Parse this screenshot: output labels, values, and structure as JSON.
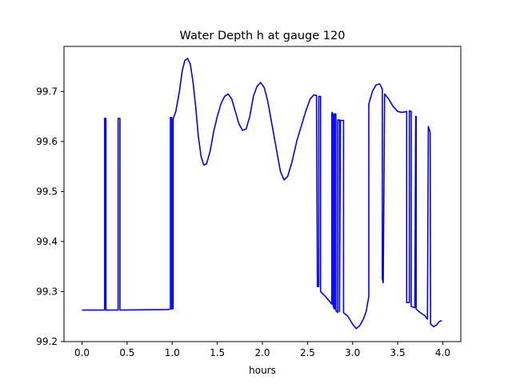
{
  "chart_data": {
    "type": "line",
    "title": "Water Depth h at gauge 120",
    "xlabel": "hours",
    "ylabel": "",
    "xlim": [
      -0.2,
      4.2
    ],
    "ylim": [
      99.2,
      99.79
    ],
    "x_ticks": [
      0.0,
      0.5,
      1.0,
      1.5,
      2.0,
      2.5,
      3.0,
      3.5,
      4.0
    ],
    "x_tick_labels": [
      "0.0",
      "0.5",
      "1.0",
      "1.5",
      "2.0",
      "2.5",
      "3.0",
      "3.5",
      "4.0"
    ],
    "y_ticks": [
      99.2,
      99.3,
      99.4,
      99.5,
      99.6,
      99.7
    ],
    "y_tick_labels": [
      "99.2",
      "99.3",
      "99.4",
      "99.5",
      "99.6",
      "99.7"
    ],
    "grid": false,
    "legend": "none",
    "series": [
      {
        "color": "#0000ff",
        "points": [
          [
            0.0,
            99.263
          ],
          [
            0.25,
            99.263
          ],
          [
            0.25,
            99.646
          ],
          [
            0.265,
            99.646
          ],
          [
            0.265,
            99.263
          ],
          [
            0.4,
            99.263
          ],
          [
            0.4,
            99.646
          ],
          [
            0.42,
            99.646
          ],
          [
            0.42,
            99.263
          ],
          [
            0.95,
            99.264
          ],
          [
            0.98,
            99.265
          ],
          [
            0.98,
            99.648
          ],
          [
            0.995,
            99.648
          ],
          [
            0.995,
            99.265
          ],
          [
            1.01,
            99.266
          ],
          [
            1.01,
            99.645
          ],
          [
            1.04,
            99.66
          ],
          [
            1.08,
            99.7
          ],
          [
            1.11,
            99.74
          ],
          [
            1.14,
            99.762
          ],
          [
            1.17,
            99.766
          ],
          [
            1.2,
            99.755
          ],
          [
            1.23,
            99.72
          ],
          [
            1.26,
            99.67
          ],
          [
            1.29,
            99.61
          ],
          [
            1.32,
            99.57
          ],
          [
            1.35,
            99.553
          ],
          [
            1.38,
            99.555
          ],
          [
            1.42,
            99.58
          ],
          [
            1.46,
            99.62
          ],
          [
            1.5,
            99.65
          ],
          [
            1.54,
            99.675
          ],
          [
            1.58,
            99.69
          ],
          [
            1.62,
            99.695
          ],
          [
            1.66,
            99.685
          ],
          [
            1.7,
            99.66
          ],
          [
            1.74,
            99.635
          ],
          [
            1.78,
            99.622
          ],
          [
            1.82,
            99.625
          ],
          [
            1.86,
            99.65
          ],
          [
            1.9,
            99.69
          ],
          [
            1.94,
            99.71
          ],
          [
            1.98,
            99.718
          ],
          [
            2.02,
            99.708
          ],
          [
            2.06,
            99.68
          ],
          [
            2.1,
            99.64
          ],
          [
            2.15,
            99.59
          ],
          [
            2.2,
            99.54
          ],
          [
            2.24,
            99.523
          ],
          [
            2.28,
            99.53
          ],
          [
            2.33,
            99.56
          ],
          [
            2.38,
            99.6
          ],
          [
            2.43,
            99.63
          ],
          [
            2.48,
            99.66
          ],
          [
            2.53,
            99.685
          ],
          [
            2.57,
            99.693
          ],
          [
            2.6,
            99.692
          ],
          [
            2.61,
            99.31
          ],
          [
            2.625,
            99.31
          ],
          [
            2.625,
            99.69
          ],
          [
            2.645,
            99.69
          ],
          [
            2.645,
            99.3
          ],
          [
            2.7,
            99.29
          ],
          [
            2.77,
            99.275
          ],
          [
            2.77,
            99.658
          ],
          [
            2.785,
            99.655
          ],
          [
            2.785,
            99.27
          ],
          [
            2.8,
            99.265
          ],
          [
            2.8,
            99.655
          ],
          [
            2.815,
            99.655
          ],
          [
            2.815,
            99.262
          ],
          [
            2.835,
            99.258
          ],
          [
            2.835,
            99.643
          ],
          [
            2.855,
            99.643
          ],
          [
            2.855,
            99.26
          ],
          [
            2.865,
            99.642
          ],
          [
            2.9,
            99.642
          ],
          [
            2.9,
            99.258
          ],
          [
            2.95,
            99.25
          ],
          [
            3.0,
            99.235
          ],
          [
            3.04,
            99.226
          ],
          [
            3.08,
            99.232
          ],
          [
            3.12,
            99.245
          ],
          [
            3.15,
            99.26
          ],
          [
            3.18,
            99.29
          ],
          [
            3.18,
            99.675
          ],
          [
            3.22,
            99.7
          ],
          [
            3.26,
            99.713
          ],
          [
            3.3,
            99.715
          ],
          [
            3.33,
            99.705
          ],
          [
            3.33,
            99.325
          ],
          [
            3.34,
            99.318
          ],
          [
            3.355,
            99.695
          ],
          [
            3.4,
            99.685
          ],
          [
            3.45,
            99.67
          ],
          [
            3.5,
            99.66
          ],
          [
            3.55,
            99.658
          ],
          [
            3.6,
            99.66
          ],
          [
            3.6,
            99.278
          ],
          [
            3.63,
            99.278
          ],
          [
            3.63,
            99.661
          ],
          [
            3.65,
            99.66
          ],
          [
            3.65,
            99.27
          ],
          [
            3.69,
            99.268
          ],
          [
            3.7,
            99.65
          ],
          [
            3.705,
            99.65
          ],
          [
            3.705,
            99.265
          ],
          [
            3.75,
            99.258
          ],
          [
            3.8,
            99.252
          ],
          [
            3.83,
            99.245
          ],
          [
            3.84,
            99.63
          ],
          [
            3.86,
            99.618
          ],
          [
            3.865,
            99.235
          ],
          [
            3.9,
            99.23
          ],
          [
            3.93,
            99.233
          ],
          [
            3.96,
            99.24
          ],
          [
            3.99,
            99.242
          ]
        ]
      }
    ]
  }
}
